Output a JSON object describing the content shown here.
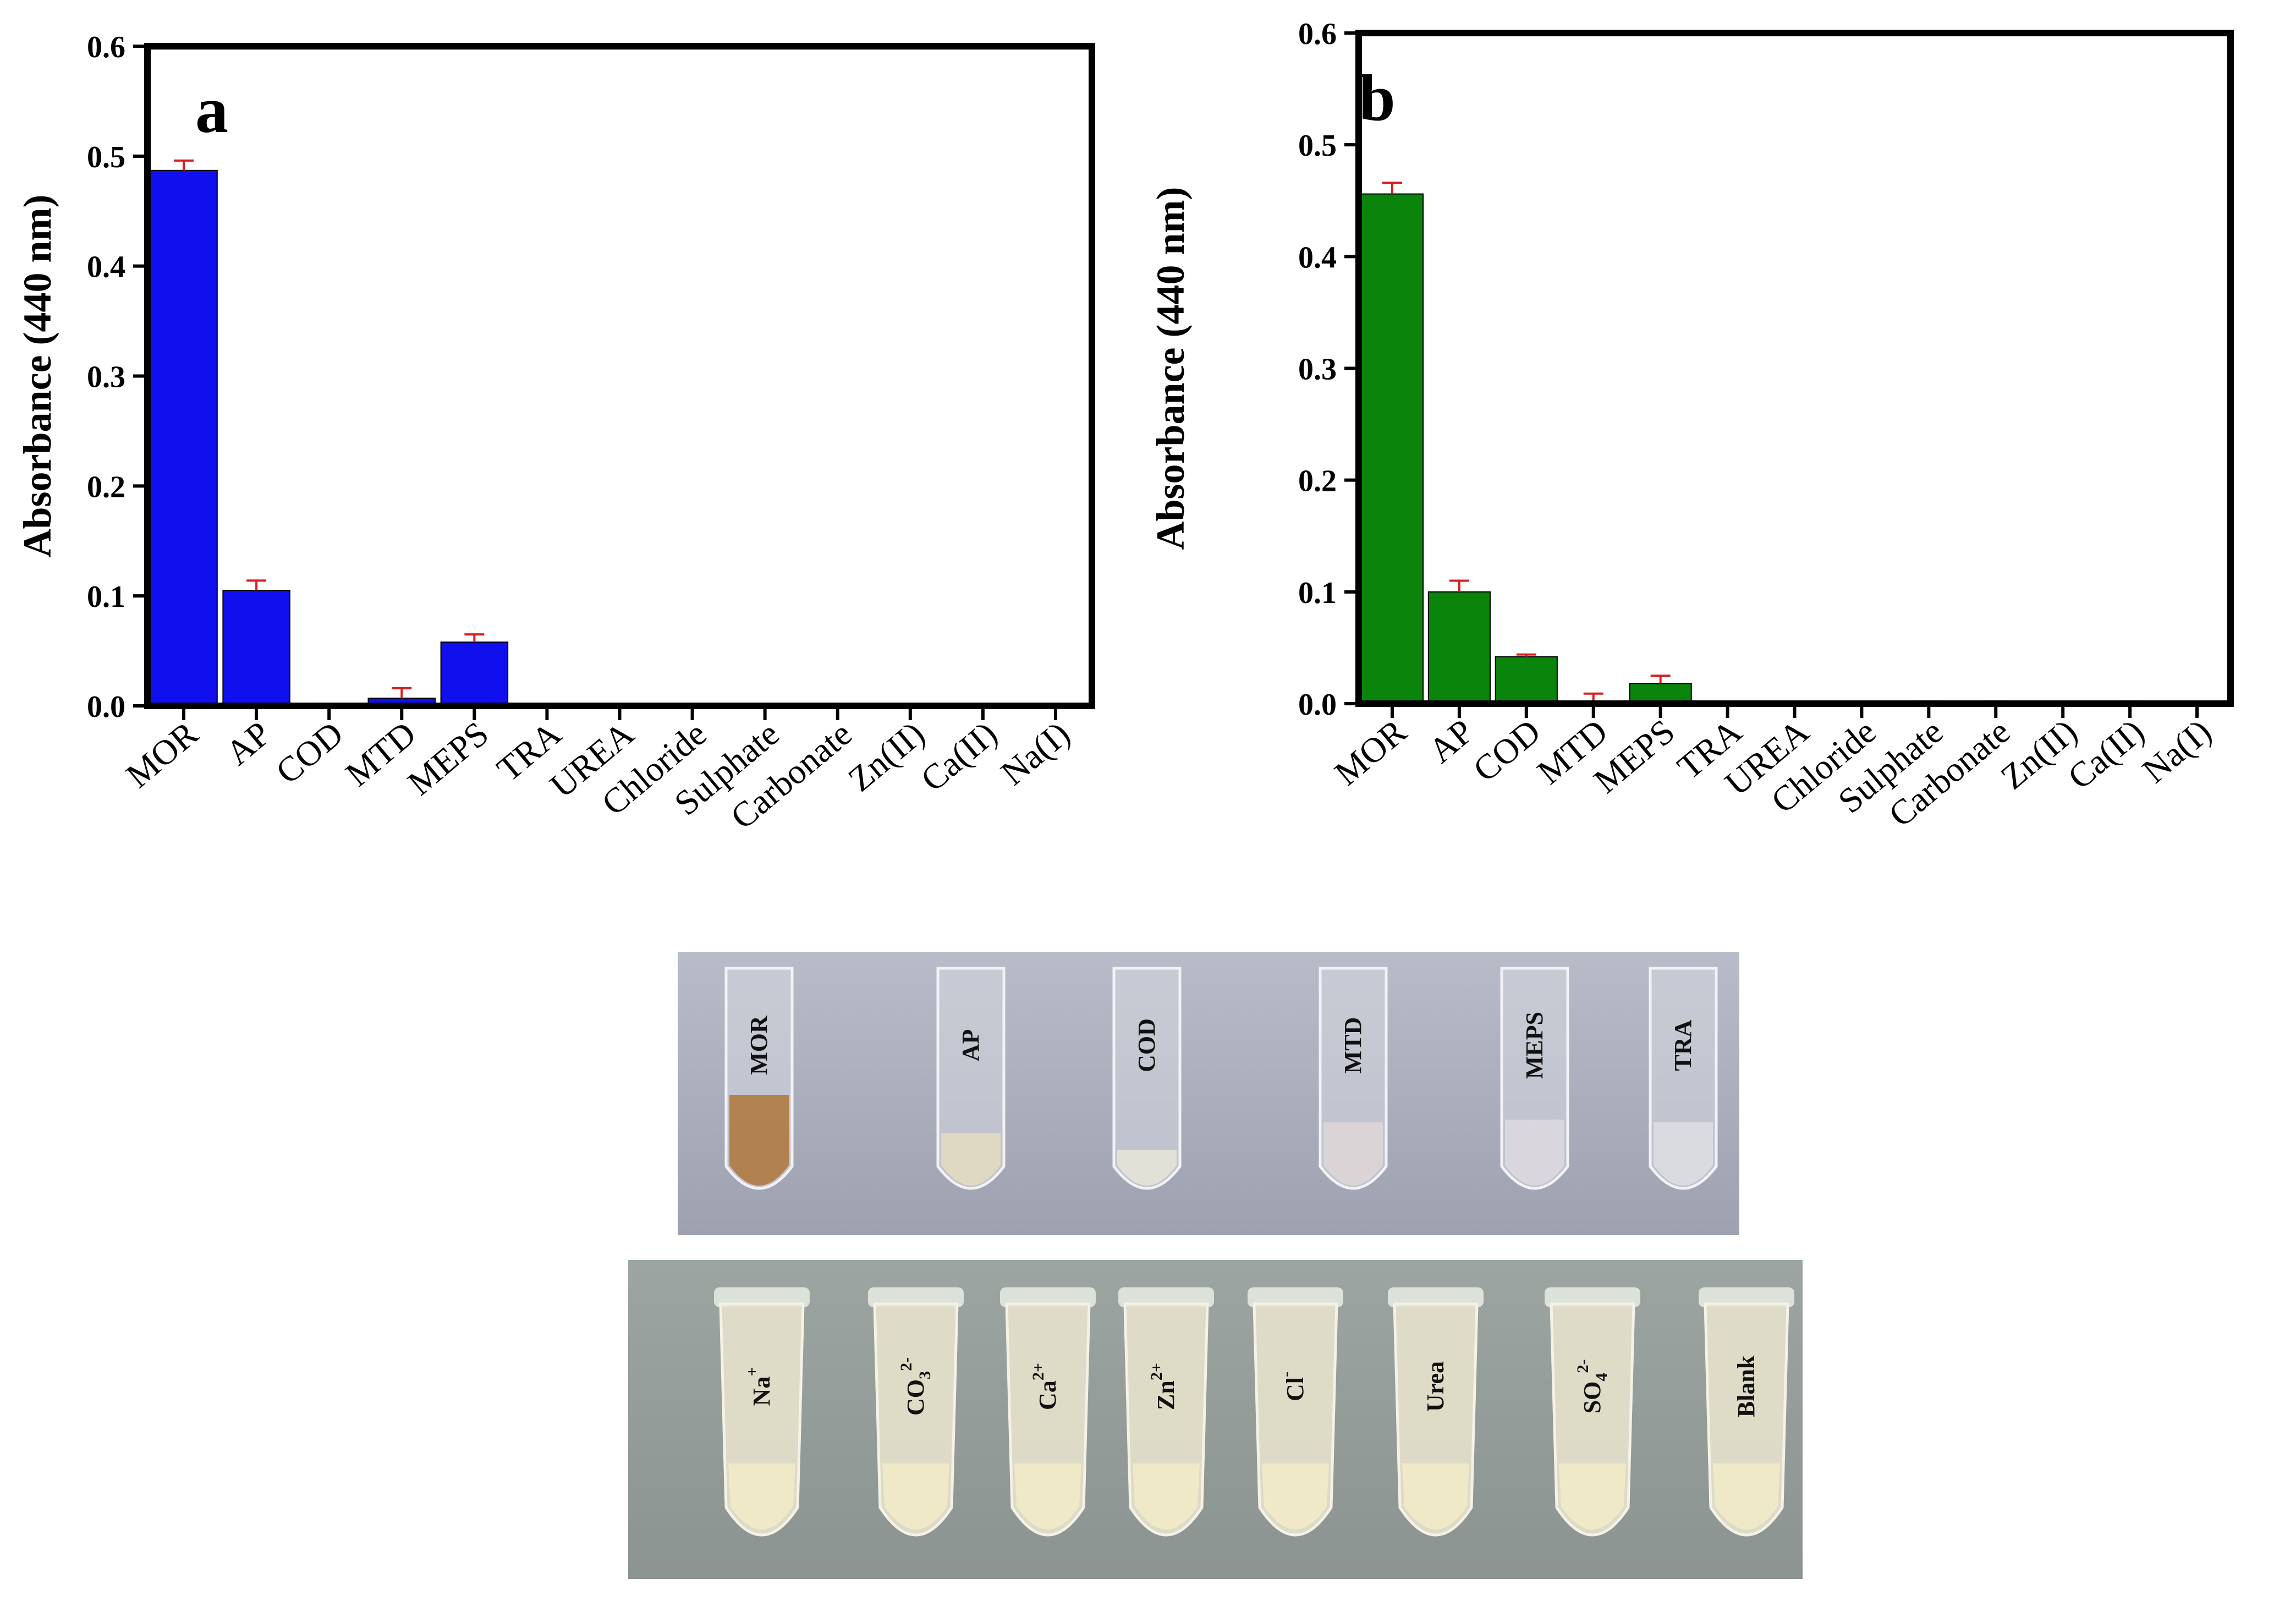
{
  "chart_data": [
    {
      "type": "bar",
      "panel": "a",
      "ylabel": "Absorbance (440 nm)",
      "xlabel": "",
      "ylim": [
        0,
        0.6
      ],
      "yticks": [
        "0.0",
        "0.1",
        "0.2",
        "0.3",
        "0.4",
        "0.5",
        "0.6"
      ],
      "color": "#1010ee",
      "error_color": "#d62020",
      "categories": [
        "MOR",
        "AP",
        "COD",
        "MTD",
        "MEPS",
        "TRA",
        "UREA",
        "Chloride",
        "Sulphate",
        "Carbonate",
        "Zn(II)",
        "Ca(II)",
        "Na(I)"
      ],
      "values": [
        0.487,
        0.105,
        0.0,
        0.007,
        0.058,
        0.0,
        0.0,
        0.0,
        0.0,
        0.0,
        0.0,
        0.0,
        0.0
      ],
      "errors": [
        0.009,
        0.009,
        0.002,
        0.009,
        0.007,
        0.0,
        0.0,
        0.0,
        0.002,
        0.002,
        0.0,
        0.002,
        0.0
      ]
    },
    {
      "type": "bar",
      "panel": "b",
      "ylabel": "Absorbance (440 nm)",
      "xlabel": "",
      "ylim": [
        0,
        0.6
      ],
      "yticks": [
        "0.0",
        "0.1",
        "0.2",
        "0.3",
        "0.4",
        "0.5",
        "0.6"
      ],
      "color": "#0a840a",
      "error_color": "#d62020",
      "categories": [
        "MOR",
        "AP",
        "COD",
        "MTD",
        "MEPS",
        "TRA",
        "UREA",
        "Chloride",
        "Sulphate",
        "Carbonate",
        "Zn(II)",
        "Ca(II)",
        "Na(I)"
      ],
      "values": [
        0.456,
        0.1,
        0.042,
        0.0,
        0.018,
        0.0,
        0.0,
        0.0,
        0.0,
        0.0,
        0.0,
        0.0,
        0.0
      ],
      "errors": [
        0.01,
        0.01,
        0.002,
        0.009,
        0.007,
        0.0,
        0.0,
        0.0,
        0.002,
        0.002,
        0.0,
        0.002,
        0.0
      ]
    }
  ],
  "photos": {
    "top_row": [
      "MOR",
      "AP",
      "COD",
      "MTD",
      "MEPS",
      "TRA"
    ],
    "bottom_row": [
      {
        "base": "Na",
        "sup": "+",
        "sub": ""
      },
      {
        "base": "CO",
        "sup": "2-",
        "sub": "3"
      },
      {
        "base": "Ca",
        "sup": "2+",
        "sub": ""
      },
      {
        "base": "Zn",
        "sup": "2+",
        "sub": ""
      },
      {
        "base": "Cl",
        "sup": "-",
        "sub": ""
      },
      {
        "base": "Urea",
        "sup": "",
        "sub": ""
      },
      {
        "base": "SO",
        "sup": "2-",
        "sub": "4"
      },
      {
        "base": "Blank",
        "sup": "",
        "sub": ""
      }
    ]
  }
}
